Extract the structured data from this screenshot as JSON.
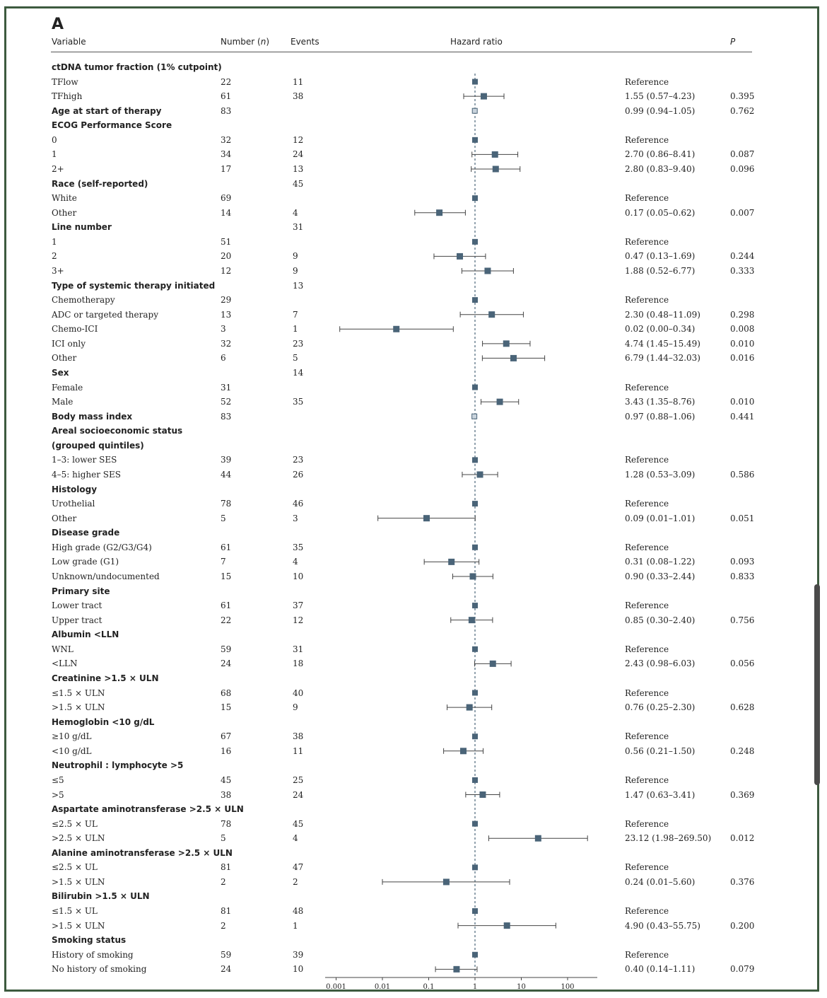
{
  "panel_label": "A",
  "headers": {
    "variable": "Variable",
    "number": "Number (",
    "number_n": "n",
    "number_close": ")",
    "events": "Events",
    "hazard": "Hazard ratio",
    "p": "P"
  },
  "chart_data": {
    "type": "forest",
    "title": "",
    "x_scale": "log",
    "x_ticks": [
      "0.001",
      "0.01",
      "0.1",
      "1",
      "10",
      "100"
    ],
    "x_tick_values": [
      0.001,
      0.01,
      0.1,
      1,
      10,
      100
    ],
    "reference_line": 1,
    "rows": [
      {
        "label": "ctDNA tumor fraction (1% cutpoint)",
        "section": true,
        "n": "",
        "events": "",
        "hr_text": "",
        "p": ""
      },
      {
        "label": "TFlow",
        "n": "22",
        "events": "11",
        "hr_text": "Reference",
        "p": "",
        "ref": true
      },
      {
        "label": "TFhigh",
        "n": "61",
        "events": "38",
        "hr_text": "1.55 (0.57–4.23)",
        "p": "0.395",
        "est": 1.55,
        "lo": 0.57,
        "hi": 4.23
      },
      {
        "label": "Age at start of therapy",
        "section": true,
        "n": "83",
        "events": "",
        "hr_text": "0.99 (0.94–1.05)",
        "p": "0.762",
        "est": 0.99,
        "lo": 0.94,
        "hi": 1.05
      },
      {
        "label": "ECOG Performance Score",
        "section": true,
        "n": "",
        "events": "",
        "hr_text": "",
        "p": ""
      },
      {
        "label": "0",
        "n": "32",
        "events": "12",
        "hr_text": "Reference",
        "p": "",
        "ref": true
      },
      {
        "label": "1",
        "n": "34",
        "events": "24",
        "hr_text": "2.70 (0.86–8.41)",
        "p": "0.087",
        "est": 2.7,
        "lo": 0.86,
        "hi": 8.41
      },
      {
        "label": "2+",
        "n": "17",
        "events": "13",
        "hr_text": "2.80 (0.83–9.40)",
        "p": "0.096",
        "est": 2.8,
        "lo": 0.83,
        "hi": 9.4
      },
      {
        "label": "Race (self-reported)",
        "section": true,
        "n": "",
        "events": "45",
        "hr_text": "",
        "p": ""
      },
      {
        "label": "White",
        "n": "69",
        "events": "",
        "hr_text": "Reference",
        "p": "",
        "ref": true
      },
      {
        "label": "Other",
        "n": "14",
        "events": "4",
        "hr_text": "0.17 (0.05–0.62)",
        "p": "0.007",
        "est": 0.17,
        "lo": 0.05,
        "hi": 0.62
      },
      {
        "label": "Line number",
        "section": true,
        "n": "",
        "events": "31",
        "hr_text": "",
        "p": ""
      },
      {
        "label": "1",
        "n": "51",
        "events": "",
        "hr_text": "Reference",
        "p": "",
        "ref": true
      },
      {
        "label": "2",
        "n": "20",
        "events": "9",
        "hr_text": "0.47 (0.13–1.69)",
        "p": "0.244",
        "est": 0.47,
        "lo": 0.13,
        "hi": 1.69
      },
      {
        "label": "3+",
        "n": "12",
        "events": "9",
        "hr_text": "1.88 (0.52–6.77)",
        "p": "0.333",
        "est": 1.88,
        "lo": 0.52,
        "hi": 6.77
      },
      {
        "label": "Type of systemic therapy initiated",
        "section": true,
        "n": "",
        "events": "13",
        "hr_text": "",
        "p": ""
      },
      {
        "label": "Chemotherapy",
        "n": "29",
        "events": "",
        "hr_text": "Reference",
        "p": "",
        "ref": true
      },
      {
        "label": "ADC or targeted therapy",
        "n": "13",
        "events": "7",
        "hr_text": "2.30 (0.48–11.09)",
        "p": "0.298",
        "est": 2.3,
        "lo": 0.48,
        "hi": 11.09
      },
      {
        "label": "Chemo-ICI",
        "n": "3",
        "events": "1",
        "hr_text": "0.02 (0.00–0.34)",
        "p": "0.008",
        "est": 0.02,
        "lo": 0.0012,
        "hi": 0.34
      },
      {
        "label": "ICI only",
        "n": "32",
        "events": "23",
        "hr_text": "4.74 (1.45–15.49)",
        "p": "0.010",
        "est": 4.74,
        "lo": 1.45,
        "hi": 15.49
      },
      {
        "label": "Other",
        "n": "6",
        "events": "5",
        "hr_text": "6.79 (1.44–32.03)",
        "p": "0.016",
        "est": 6.79,
        "lo": 1.44,
        "hi": 32.03
      },
      {
        "label": "Sex",
        "section": true,
        "n": "",
        "events": "14",
        "hr_text": "",
        "p": ""
      },
      {
        "label": "Female",
        "n": "31",
        "events": "",
        "hr_text": "Reference",
        "p": "",
        "ref": true
      },
      {
        "label": "Male",
        "n": "52",
        "events": "35",
        "hr_text": "3.43 (1.35–8.76)",
        "p": "0.010",
        "est": 3.43,
        "lo": 1.35,
        "hi": 8.76
      },
      {
        "label": "Body mass index",
        "section": true,
        "n": "83",
        "events": "",
        "hr_text": "0.97 (0.88–1.06)",
        "p": "0.441",
        "est": 0.97,
        "lo": 0.88,
        "hi": 1.06
      },
      {
        "label": "Areal socioeconomic status",
        "section": true,
        "n": "",
        "events": "",
        "hr_text": "",
        "p": ""
      },
      {
        "label": "(grouped quintiles)",
        "section": true,
        "n": "",
        "events": "",
        "hr_text": "",
        "p": ""
      },
      {
        "label": "1–3: lower SES",
        "n": "39",
        "events": "23",
        "hr_text": "Reference",
        "p": "",
        "ref": true
      },
      {
        "label": "4–5: higher SES",
        "n": "44",
        "events": "26",
        "hr_text": "1.28 (0.53–3.09)",
        "p": "0.586",
        "est": 1.28,
        "lo": 0.53,
        "hi": 3.09
      },
      {
        "label": "Histology",
        "section": true,
        "n": "",
        "events": "",
        "hr_text": "",
        "p": ""
      },
      {
        "label": "Urothelial",
        "n": "78",
        "events": "46",
        "hr_text": "Reference",
        "p": "",
        "ref": true
      },
      {
        "label": "Other",
        "n": "5",
        "events": "3",
        "hr_text": "0.09 (0.01–1.01)",
        "p": "0.051",
        "est": 0.09,
        "lo": 0.008,
        "hi": 1.01
      },
      {
        "label": "Disease grade",
        "section": true,
        "n": "",
        "events": "",
        "hr_text": "",
        "p": ""
      },
      {
        "label": "High grade (G2/G3/G4)",
        "n": "61",
        "events": "35",
        "hr_text": "Reference",
        "p": "",
        "ref": true
      },
      {
        "label": "Low grade (G1)",
        "n": "7",
        "events": "4",
        "hr_text": "0.31 (0.08–1.22)",
        "p": "0.093",
        "est": 0.31,
        "lo": 0.08,
        "hi": 1.22
      },
      {
        "label": "Unknown/undocumented",
        "n": "15",
        "events": "10",
        "hr_text": "0.90 (0.33–2.44)",
        "p": "0.833",
        "est": 0.9,
        "lo": 0.33,
        "hi": 2.44
      },
      {
        "label": "Primary site",
        "section": true,
        "n": "",
        "events": "",
        "hr_text": "",
        "p": ""
      },
      {
        "label": "Lower tract",
        "n": "61",
        "events": "37",
        "hr_text": "Reference",
        "p": "",
        "ref": true
      },
      {
        "label": "Upper tract",
        "n": "22",
        "events": "12",
        "hr_text": "0.85 (0.30–2.40)",
        "p": "0.756",
        "est": 0.85,
        "lo": 0.3,
        "hi": 2.4
      },
      {
        "label": "Albumin <LLN",
        "section": true,
        "n": "",
        "events": "",
        "hr_text": "",
        "p": ""
      },
      {
        "label": "WNL",
        "n": "59",
        "events": "31",
        "hr_text": "Reference",
        "p": "",
        "ref": true
      },
      {
        "label": "<LLN",
        "n": "24",
        "events": "18",
        "hr_text": "2.43 (0.98–6.03)",
        "p": "0.056",
        "est": 2.43,
        "lo": 0.98,
        "hi": 6.03
      },
      {
        "label": "Creatinine >1.5 × ULN",
        "section": true,
        "n": "",
        "events": "",
        "hr_text": "",
        "p": ""
      },
      {
        "label": "≤1.5 × ULN",
        "n": "68",
        "events": "40",
        "hr_text": "Reference",
        "p": "",
        "ref": true
      },
      {
        "label": ">1.5 × ULN",
        "n": "15",
        "events": "9",
        "hr_text": "0.76 (0.25–2.30)",
        "p": "0.628",
        "est": 0.76,
        "lo": 0.25,
        "hi": 2.3
      },
      {
        "label": "Hemoglobin <10 g/dL",
        "section": true,
        "n": "",
        "events": "",
        "hr_text": "",
        "p": ""
      },
      {
        "label": "≥10 g/dL",
        "n": "67",
        "events": "38",
        "hr_text": "Reference",
        "p": "",
        "ref": true
      },
      {
        "label": "<10 g/dL",
        "n": "16",
        "events": "11",
        "hr_text": "0.56 (0.21–1.50)",
        "p": "0.248",
        "est": 0.56,
        "lo": 0.21,
        "hi": 1.5
      },
      {
        "label": "Neutrophil : lymphocyte >5",
        "section": true,
        "n": "",
        "events": "",
        "hr_text": "",
        "p": ""
      },
      {
        "label": "≤5",
        "n": "45",
        "events": "25",
        "hr_text": "Reference",
        "p": "",
        "ref": true
      },
      {
        "label": ">5",
        "n": "38",
        "events": "24",
        "hr_text": "1.47 (0.63–3.41)",
        "p": "0.369",
        "est": 1.47,
        "lo": 0.63,
        "hi": 3.41
      },
      {
        "label": "Aspartate aminotransferase >2.5 × ULN",
        "section": true,
        "n": "",
        "events": "",
        "hr_text": "",
        "p": ""
      },
      {
        "label": "≤2.5 × UL",
        "n": "78",
        "events": "45",
        "hr_text": "Reference",
        "p": "",
        "ref": true
      },
      {
        "label": ">2.5 × ULN",
        "n": "5",
        "events": "4",
        "hr_text": "23.12 (1.98–269.50)",
        "p": "0.012",
        "est": 23.12,
        "lo": 1.98,
        "hi": 269.5
      },
      {
        "label": "Alanine aminotransferase >2.5 × ULN",
        "section": true,
        "n": "",
        "events": "",
        "hr_text": "",
        "p": ""
      },
      {
        "label": "≤2.5 × UL",
        "n": "81",
        "events": "47",
        "hr_text": "Reference",
        "p": "",
        "ref": true
      },
      {
        "label": ">1.5 × ULN",
        "n": "2",
        "events": "2",
        "hr_text": "0.24 (0.01–5.60)",
        "p": "0.376",
        "est": 0.24,
        "lo": 0.01,
        "hi": 5.6
      },
      {
        "label": "Bilirubin >1.5 × ULN",
        "section": true,
        "n": "",
        "events": "",
        "hr_text": "",
        "p": ""
      },
      {
        "label": "≤1.5 × UL",
        "n": "81",
        "events": "48",
        "hr_text": "Reference",
        "p": "",
        "ref": true
      },
      {
        "label": ">1.5 × ULN",
        "n": "2",
        "events": "1",
        "hr_text": "4.90 (0.43–55.75)",
        "p": "0.200",
        "est": 4.9,
        "lo": 0.43,
        "hi": 55.75
      },
      {
        "label": "Smoking status",
        "section": true,
        "n": "",
        "events": "",
        "hr_text": "",
        "p": ""
      },
      {
        "label": "History of smoking",
        "n": "59",
        "events": "39",
        "hr_text": "Reference",
        "p": "",
        "ref": true
      },
      {
        "label": "No history of smoking",
        "n": "24",
        "events": "10",
        "hr_text": "0.40 (0.14–1.11)",
        "p": "0.079",
        "est": 0.4,
        "lo": 0.14,
        "hi": 1.11
      }
    ]
  },
  "colors": {
    "marker": "#4a6478",
    "line": "#444444",
    "frame": "#3d5a3f"
  }
}
